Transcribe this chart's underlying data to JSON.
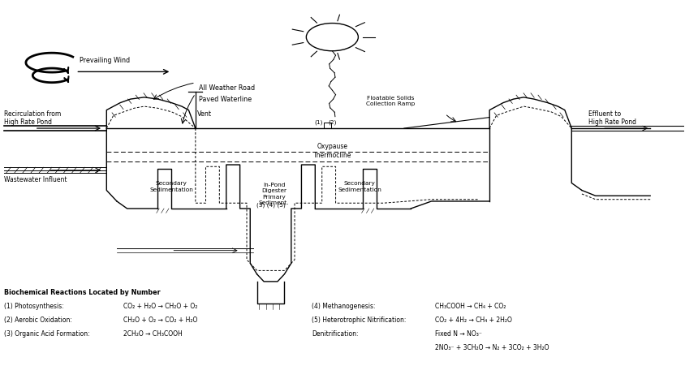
{
  "bg_color": "#ffffff",
  "fig_width": 8.44,
  "fig_height": 4.51,
  "dpi": 100,
  "lc": "#000000",
  "annotations": {
    "prevailing_wind": "Prevailing Wind",
    "all_weather_road": "All Weather Road",
    "paved_waterline": "Paved Waterline",
    "recirculation": "Recirculation from\nHigh Rate Pond",
    "wastewater": "Wastewater Influent",
    "vent": "Vent",
    "oxypause": "Oxypause",
    "thermocline": "Thermocline",
    "secondary_sed_left": "Secondary\nSedimentation",
    "in_pond_digester": "In-Pond\nDigester\nPrimary\nSediment.",
    "secondary_sed_right": "Secondary\nSedimentation",
    "floatable_solids": "Floatable Solids\nCollection Ramp",
    "effluent": "Effluent to\nHigh Rate Pond",
    "numbers_label": "(3) (4) (5)",
    "numbers_top1": "(1)",
    "numbers_top2": "(2)"
  },
  "biochem_header": "Biochemical Reactions Located by Number",
  "biochem_reactions": [
    "(1) Photosynthesis:",
    "(2) Aerobic Oxidation:",
    "(3) Organic Acid Formation:"
  ],
  "biochem_formulas": [
    "CO₂ + H₂O → CH₂O + O₂",
    "CH₂O + O₂ → CO₂ + H₂O",
    "2CH₂O → CH₃COOH"
  ],
  "biochem_reactions2": [
    "(4) Methanogenesis:",
    "(5) Heterotrophic Nitrification:",
    "Denitrification:"
  ],
  "biochem_formulas2a": [
    "CH₃COOH → CH₄ + CO₂",
    "Fixed N → NO₃⁻",
    "2NO₃⁻ + 3CH₂O → N₂ + 3CO₂ + 3H₂O"
  ],
  "biochem_formula_meth2": "CO₂ + 4H₂ → CH₄ + 2H₂O"
}
